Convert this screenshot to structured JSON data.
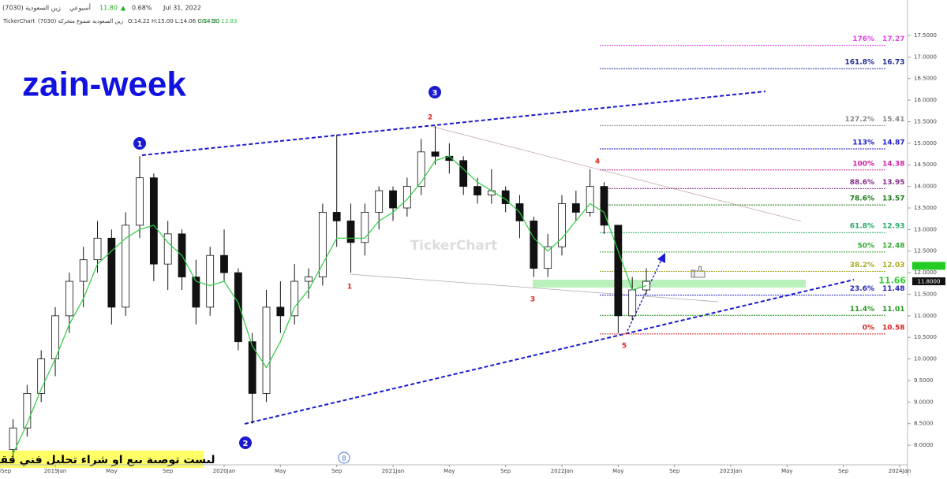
{
  "chart_data": {
    "type": "candlestick",
    "header": {
      "symbol": "زين السعودية (7030)",
      "period": "أسبوعي",
      "last": "11.80",
      "arrow": "▲",
      "change": "0.68%",
      "date": "Jul 31, 2022",
      "brand": "TickerChart",
      "series_name": "زين السعودية شموع متحركة (7030)",
      "ohlc": "O:14.22 H:15.00 L:14.06 C:14.90",
      "ma_label": "MA(13) 13.83"
    },
    "title": "zain-week",
    "watermark": "TickerChart",
    "disclaimer": "ليست توصية بيع او شراء تحليل فني فقط",
    "badge": "B",
    "ylim": [
      7.6,
      18.3
    ],
    "yticks": [
      {
        "value": 8,
        "label": "8.0000"
      },
      {
        "value": 8.5,
        "label": "8.5000"
      },
      {
        "value": 9,
        "label": "9.0000"
      },
      {
        "value": 9.5,
        "label": "9.5000"
      },
      {
        "value": 10,
        "label": "10.0000"
      },
      {
        "value": 10.5,
        "label": "10.5000"
      },
      {
        "value": 11,
        "label": "11.0000"
      },
      {
        "value": 11.5,
        "label": "11.5000"
      },
      {
        "value": 12,
        "label": "12.0000"
      },
      {
        "value": 12.5,
        "label": "12.5000"
      },
      {
        "value": 13,
        "label": "13.0000"
      },
      {
        "value": 13.5,
        "label": "13.5000"
      },
      {
        "value": 14,
        "label": "14.0000"
      },
      {
        "value": 14.5,
        "label": "14.5000"
      },
      {
        "value": 15,
        "label": "15.0000"
      },
      {
        "value": 15.5,
        "label": "15.5000"
      },
      {
        "value": 16,
        "label": "16.0000"
      },
      {
        "value": 16.5,
        "label": "16.5000"
      },
      {
        "value": 17,
        "label": "17.0000"
      },
      {
        "value": 17.5,
        "label": "17.5000"
      }
    ],
    "xlim": [
      "2018-09",
      "2024-01"
    ],
    "xticks": [
      {
        "value": "2018-09",
        "label": "2018Sep"
      },
      {
        "value": "2019-01",
        "label": "2019Jan"
      },
      {
        "value": "2019-05",
        "label": "May"
      },
      {
        "value": "2019-09",
        "label": "Sep"
      },
      {
        "value": "2020-01",
        "label": "2020Jan"
      },
      {
        "value": "2020-05",
        "label": "May"
      },
      {
        "value": "2020-09",
        "label": "Sep"
      },
      {
        "value": "2021-01",
        "label": "2021Jan"
      },
      {
        "value": "2021-05",
        "label": "May"
      },
      {
        "value": "2021-09",
        "label": "Sep"
      },
      {
        "value": "2022-01",
        "label": "2022Jan"
      },
      {
        "value": "2022-05",
        "label": "May"
      },
      {
        "value": "2022-09",
        "label": "Sep"
      },
      {
        "value": "2023-01",
        "label": "2023Jan"
      },
      {
        "value": "2023-05",
        "label": "May"
      },
      {
        "value": "2023-09",
        "label": "Sep"
      },
      {
        "value": "2024-01",
        "label": "2024Jan"
      }
    ],
    "candles": {
      "up_color": "#ffffff",
      "down_color": "#111111",
      "x": [
        "2018-10",
        "2018-11",
        "2018-12",
        "2019-01",
        "2019-02",
        "2019-03",
        "2019-04",
        "2019-05",
        "2019-06",
        "2019-07",
        "2019-08",
        "2019-09",
        "2019-10",
        "2019-11",
        "2019-12",
        "2020-01",
        "2020-02",
        "2020-03",
        "2020-04",
        "2020-05",
        "2020-06",
        "2020-07",
        "2020-08",
        "2020-09",
        "2020-10",
        "2020-11",
        "2020-12",
        "2021-01",
        "2021-02",
        "2021-03",
        "2021-04",
        "2021-05",
        "2021-06",
        "2021-07",
        "2021-08",
        "2021-09",
        "2021-10",
        "2021-11",
        "2021-12",
        "2022-01",
        "2022-02",
        "2022-03",
        "2022-04",
        "2022-05",
        "2022-06",
        "2022-07"
      ],
      "open": [
        7.9,
        8.4,
        9.2,
        10.0,
        11.0,
        11.8,
        12.3,
        12.8,
        11.2,
        13.1,
        14.2,
        12.2,
        12.9,
        11.9,
        11.2,
        12.4,
        12.0,
        10.4,
        9.2,
        11.2,
        11.0,
        11.8,
        11.9,
        13.4,
        13.2,
        12.7,
        13.4,
        13.9,
        13.5,
        14.0,
        14.8,
        14.7,
        14.6,
        14.0,
        13.8,
        13.9,
        13.6,
        13.2,
        12.1,
        12.6,
        13.6,
        13.4,
        14.0,
        13.1,
        11.0,
        11.6
      ],
      "high": [
        8.6,
        9.4,
        10.2,
        11.2,
        12.0,
        12.6,
        13.2,
        13.0,
        13.4,
        14.7,
        14.3,
        13.2,
        13.0,
        12.3,
        12.6,
        13.0,
        12.1,
        10.6,
        11.6,
        11.8,
        12.2,
        12.1,
        13.6,
        15.2,
        13.6,
        13.6,
        14.0,
        14.0,
        14.2,
        15.1,
        15.4,
        15.0,
        14.7,
        14.2,
        14.4,
        14.0,
        13.8,
        13.3,
        12.9,
        13.8,
        13.9,
        14.4,
        14.1,
        13.1,
        11.9,
        12.1
      ],
      "low": [
        7.6,
        8.2,
        9.0,
        9.6,
        10.6,
        11.2,
        12.0,
        10.8,
        11.0,
        12.8,
        11.8,
        11.6,
        11.6,
        10.8,
        11.0,
        11.8,
        10.2,
        8.5,
        9.0,
        10.6,
        10.8,
        11.4,
        11.7,
        12.6,
        12.0,
        12.4,
        13.0,
        13.2,
        13.3,
        13.8,
        14.5,
        14.3,
        13.8,
        13.6,
        13.6,
        13.4,
        12.8,
        11.9,
        11.9,
        12.4,
        13.2,
        13.3,
        12.9,
        10.6,
        10.9,
        11.5
      ],
      "close": [
        8.4,
        9.2,
        10.0,
        11.0,
        11.8,
        12.3,
        12.8,
        11.2,
        13.1,
        14.2,
        12.2,
        12.9,
        11.9,
        11.2,
        12.4,
        12.0,
        10.4,
        9.2,
        11.2,
        11.0,
        11.8,
        11.9,
        13.4,
        13.2,
        12.7,
        13.4,
        13.9,
        13.5,
        14.0,
        14.8,
        14.7,
        14.6,
        14.0,
        13.8,
        13.9,
        13.6,
        13.2,
        12.1,
        12.6,
        13.6,
        13.4,
        14.0,
        13.1,
        11.0,
        11.6,
        11.8
      ]
    },
    "ma": {
      "color": "#2ecc40",
      "values": [
        7.8,
        8.5,
        9.3,
        10.0,
        10.8,
        11.4,
        12.2,
        12.5,
        12.8,
        13.0,
        13.1,
        12.7,
        12.4,
        11.8,
        11.7,
        11.8,
        11.3,
        10.3,
        9.8,
        10.4,
        11.2,
        11.6,
        12.2,
        12.8,
        12.8,
        12.8,
        13.2,
        13.4,
        13.7,
        14.1,
        14.6,
        14.7,
        14.4,
        14.1,
        13.9,
        13.7,
        13.4,
        12.8,
        12.5,
        12.8,
        13.2,
        13.6,
        13.4,
        12.5,
        11.6,
        11.7
      ]
    },
    "fib": [
      {
        "label": "176%",
        "value": 17.27,
        "color": "#e040e0"
      },
      {
        "label": "161.8%",
        "value": 16.73,
        "color": "#23309a"
      },
      {
        "label": "127.2%",
        "value": 15.41,
        "color": "#888888"
      },
      {
        "label": "113%",
        "value": 14.87,
        "color": "#1a1ad0"
      },
      {
        "label": "100%",
        "value": 14.38,
        "color": "#d020a0"
      },
      {
        "label": "88.6%",
        "value": 13.95,
        "color": "#8a2a8a"
      },
      {
        "label": "78.6%",
        "value": 13.57,
        "color": "#1a7a1a"
      },
      {
        "label": "61.8%",
        "value": 12.93,
        "color": "#22aa66"
      },
      {
        "label": "50%",
        "value": 12.48,
        "color": "#33aa33"
      },
      {
        "label": "38.2%",
        "value": 12.03,
        "color": "#aaaa22"
      },
      {
        "label": "23.6%",
        "value": 11.48,
        "color": "#2222bb"
      },
      {
        "label": "11.4%",
        "value": 11.01,
        "color": "#229922"
      },
      {
        "label": "0%",
        "value": 10.58,
        "color": "#dd2222"
      }
    ],
    "price_tags": [
      {
        "value": 12.1585,
        "color": "#22cc22"
      },
      {
        "value": 11.8,
        "label": "11.8000",
        "color": "#111111"
      }
    ],
    "zone_price": 11.66,
    "wave_labels": {
      "major": [
        "1",
        "2",
        "3"
      ],
      "minor": [
        "1",
        "2",
        "3",
        "4",
        "5"
      ]
    }
  }
}
